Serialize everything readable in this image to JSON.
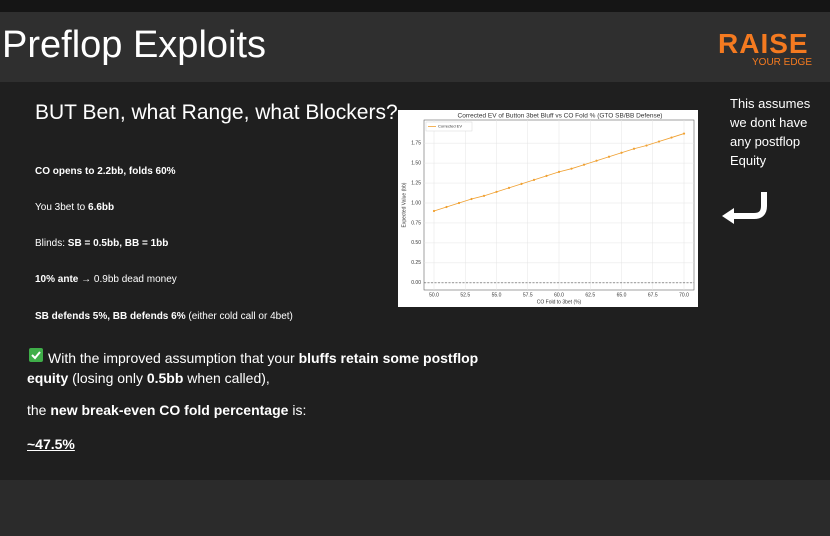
{
  "header": {
    "title": "Preflop Exploits",
    "logo": "RAISE",
    "logo_sub": "YOUR EDGE"
  },
  "slide": {
    "heading": "BUT Ben, what Range, what Blockers?",
    "lines": [
      [
        "CO opens to 2.2bb, folds 60%"
      ],
      [
        "You 3bet to ",
        "6.6bb"
      ],
      [
        "Blinds: ",
        "SB = 0.5bb, BB = 1bb"
      ],
      [
        "10% ante",
        " → 0.9bb dead money"
      ],
      [
        "SB defends 5%, BB defends 6%",
        " (either cold call or 4bet)"
      ]
    ],
    "assumption": [
      "With the improved assumption that your ",
      "bluffs retain some postflop equity",
      " (losing only ",
      "0.5bb",
      " when called),"
    ],
    "conclusion": [
      "the ",
      "new break-even CO fold percentage",
      " is:"
    ],
    "result": "~47.5%",
    "side_note": "This assumes we dont have any postflop Equity"
  },
  "chart_data": {
    "type": "line",
    "title": "Corrected EV of Button 3bet Bluff vs CO Fold % (GTO SB/BB Defense)",
    "x_label": "CO Fold to 3bet (%)",
    "y_label": "Expected Value (bb)",
    "x": [
      50,
      51,
      52,
      53,
      54,
      55,
      56,
      57,
      58,
      59,
      60,
      61,
      62,
      63,
      64,
      65,
      66,
      67,
      68,
      69,
      70
    ],
    "series": [
      {
        "name": "Corrected EV",
        "color": "#f0a030",
        "values": [
          0.9,
          0.95,
          1.0,
          1.05,
          1.09,
          1.14,
          1.19,
          1.24,
          1.29,
          1.34,
          1.39,
          1.43,
          1.48,
          1.53,
          1.58,
          1.63,
          1.68,
          1.72,
          1.77,
          1.82,
          1.87
        ]
      }
    ],
    "xlim": [
      49.2,
      70.8
    ],
    "ylim": [
      -0.09,
      2.04
    ],
    "xticks": [
      {
        "value": 50,
        "label": "50.0"
      },
      {
        "value": 52.5,
        "label": "52.5"
      },
      {
        "value": 55,
        "label": "55.0"
      },
      {
        "value": 57.5,
        "label": "57.5"
      },
      {
        "value": 60,
        "label": "60.0"
      },
      {
        "value": 62.5,
        "label": "62.5"
      },
      {
        "value": 65,
        "label": "65.0"
      },
      {
        "value": 67.5,
        "label": "67.5"
      },
      {
        "value": 70,
        "label": "70.0"
      }
    ],
    "yticks": [
      {
        "value": 0,
        "label": "0.00"
      },
      {
        "value": 0.25,
        "label": "0.25"
      },
      {
        "value": 0.5,
        "label": "0.50"
      },
      {
        "value": 0.75,
        "label": "0.75"
      },
      {
        "value": 1,
        "label": "1.00"
      },
      {
        "value": 1.25,
        "label": "1.25"
      },
      {
        "value": 1.5,
        "label": "1.50"
      },
      {
        "value": 1.75,
        "label": "1.75"
      }
    ],
    "reference_line": 0,
    "grid": true,
    "legend": "upper left"
  }
}
